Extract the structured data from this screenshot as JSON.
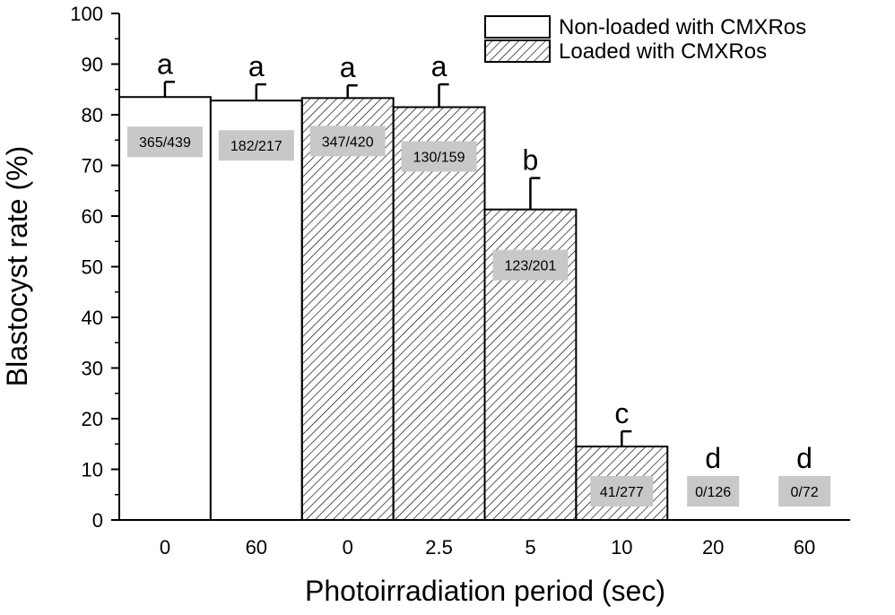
{
  "chart_data": {
    "type": "bar",
    "xlabel": "Photoirradiation period (sec)",
    "ylabel": "Blastocyst rate (%)",
    "ylim": [
      0,
      100
    ],
    "yticks": [
      0,
      10,
      20,
      30,
      40,
      50,
      60,
      70,
      80,
      90,
      100
    ],
    "categories": [
      "0",
      "60",
      "0",
      "2.5",
      "5",
      "10",
      "20",
      "60"
    ],
    "values": [
      83.5,
      82.8,
      83.3,
      81.5,
      61.3,
      14.5,
      0,
      0
    ],
    "error": [
      3.0,
      3.2,
      2.5,
      4.5,
      6.2,
      3.0,
      0,
      0
    ],
    "groups": [
      "Non-loaded with CMXRos",
      "Non-loaded with CMXRos",
      "Loaded with CMXRos",
      "Loaded with CMXRos",
      "Loaded with CMXRos",
      "Loaded with CMXRos",
      "Loaded with CMXRos",
      "Loaded with CMXRos"
    ],
    "significance_letters": [
      "a",
      "a",
      "a",
      "a",
      "b",
      "c",
      "d",
      "d"
    ],
    "count_labels": [
      "365/439",
      "182/217",
      "347/420",
      "130/159",
      "123/201",
      "41/277",
      "0/126",
      "0/72"
    ],
    "legend": {
      "position": "top-right",
      "entries": [
        {
          "name": "Non-loaded with CMXRos",
          "fill": "white"
        },
        {
          "name": "Loaded with CMXRos",
          "fill": "hatched"
        }
      ]
    },
    "colors": {
      "bar_edge": "#000000",
      "label_box": "#c8c8c8",
      "hatch": "#000000"
    }
  }
}
